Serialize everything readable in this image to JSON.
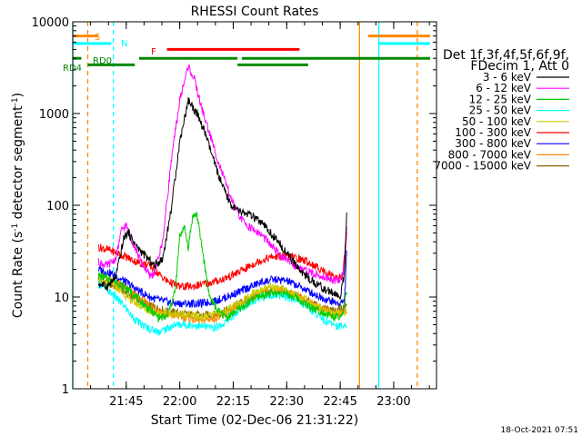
{
  "chart_data": {
    "type": "line",
    "title": "RHESSI Count Rates",
    "xlabel": "Start Time (02-Dec-06 21:31:22)",
    "ylabel_main": "Count Rate (s",
    "ylabel_sup": "-1",
    "ylabel_tail": " detector segment",
    "ylabel_sup2": "-1",
    "ylabel_close": ")",
    "timestamp": "18-Oct-2021 07:51",
    "y_scale": "log",
    "ylim": [
      1,
      10000
    ],
    "xlim_minutes": [
      21.5,
      23.2
    ],
    "x_ticks": [
      {
        "t": 21.75,
        "label": "21:45"
      },
      {
        "t": 22.0,
        "label": "22:00"
      },
      {
        "t": 22.25,
        "label": "22:15"
      },
      {
        "t": 22.5,
        "label": "22:30"
      },
      {
        "t": 22.75,
        "label": "22:45"
      },
      {
        "t": 23.0,
        "label": "23:00"
      }
    ],
    "y_ticks": [
      {
        "v": 1,
        "label": "1"
      },
      {
        "v": 10,
        "label": "10"
      },
      {
        "v": 100,
        "label": "100"
      },
      {
        "v": 1000,
        "label": "1000"
      },
      {
        "v": 10000,
        "label": "10000"
      }
    ],
    "legend": {
      "header1": "Det 1f,3f,4f,5f,6f,9f,",
      "header2": "FDecim 1, Att 0",
      "entries": [
        {
          "label": "3 - 6 keV",
          "color": "#000000"
        },
        {
          "label": "6 - 12 keV",
          "color": "#ff00ff"
        },
        {
          "label": "12 - 25 keV",
          "color": "#00cc00"
        },
        {
          "label": "25 - 50 keV",
          "color": "#00ffff"
        },
        {
          "label": "50 - 100 keV",
          "color": "#cccc00"
        },
        {
          "label": "100 - 300 keV",
          "color": "#ff0000"
        },
        {
          "label": "300 - 800 keV",
          "color": "#0000ff"
        },
        {
          "label": "800 - 7000 keV",
          "color": "#ff8800"
        },
        {
          "label": "7000 - 15000 keV",
          "color": "#886600"
        }
      ]
    },
    "flag_labels": [
      {
        "text": "S",
        "color": "#ff8800"
      },
      {
        "text": "N",
        "color": "#00ffff"
      },
      {
        "text": "F",
        "color": "#ff0000"
      },
      {
        "text": "RD0",
        "color": "#008800"
      },
      {
        "text": "RD4",
        "color": "#008800"
      }
    ],
    "flag_bars": [
      {
        "name": "S",
        "color": "#ff8800",
        "value": 7000,
        "segments": [
          [
            21.5,
            21.62
          ],
          [
            22.88,
            23.17
          ]
        ]
      },
      {
        "name": "N",
        "color": "#00ffff",
        "value": 5800,
        "segments": [
          [
            21.5,
            21.68
          ],
          [
            22.93,
            23.17
          ]
        ]
      },
      {
        "name": "F",
        "color": "#ff0000",
        "value": 5000,
        "segments": [
          [
            21.94,
            22.56
          ]
        ]
      },
      {
        "name": "RD0",
        "color": "#008800",
        "value": 4000,
        "segments": [
          [
            21.5,
            21.54
          ],
          [
            21.81,
            22.27
          ],
          [
            22.29,
            23.17
          ]
        ]
      },
      {
        "name": "RD4",
        "color": "#008800",
        "value": 3400,
        "segments": [
          [
            21.57,
            21.79
          ],
          [
            22.27,
            22.6
          ]
        ]
      }
    ],
    "vertical_markers": [
      {
        "t": 21.5,
        "color": "#00ffff",
        "dash": false
      },
      {
        "t": 21.57,
        "color": "#ff8800",
        "dash": true
      },
      {
        "t": 21.69,
        "color": "#00ffff",
        "dash": true
      },
      {
        "t": 22.84,
        "color": "#ff8800",
        "dash": false
      },
      {
        "t": 22.93,
        "color": "#00ffff",
        "dash": false
      },
      {
        "t": 23.11,
        "color": "#ff8800",
        "dash": true
      }
    ],
    "series": [
      {
        "name": "3 - 6 keV",
        "color": "#000000",
        "points": [
          [
            21.62,
            14
          ],
          [
            21.66,
            13
          ],
          [
            21.7,
            16
          ],
          [
            21.74,
            45
          ],
          [
            21.76,
            50
          ],
          [
            21.8,
            35
          ],
          [
            21.84,
            28
          ],
          [
            21.88,
            22
          ],
          [
            21.92,
            26
          ],
          [
            21.96,
            90
          ],
          [
            22.0,
            500
          ],
          [
            22.04,
            1400
          ],
          [
            22.08,
            1000
          ],
          [
            22.12,
            600
          ],
          [
            22.16,
            300
          ],
          [
            22.2,
            160
          ],
          [
            22.24,
            100
          ],
          [
            22.28,
            85
          ],
          [
            22.32,
            80
          ],
          [
            22.36,
            70
          ],
          [
            22.4,
            58
          ],
          [
            22.44,
            45
          ],
          [
            22.48,
            35
          ],
          [
            22.52,
            26
          ],
          [
            22.56,
            20
          ],
          [
            22.6,
            16
          ],
          [
            22.64,
            14
          ],
          [
            22.68,
            12
          ],
          [
            22.72,
            11
          ],
          [
            22.75,
            10
          ],
          [
            22.77,
            18
          ],
          [
            22.78,
            80
          ]
        ]
      },
      {
        "name": "6 - 12 keV",
        "color": "#ff00ff",
        "points": [
          [
            21.62,
            24
          ],
          [
            21.66,
            22
          ],
          [
            21.7,
            26
          ],
          [
            21.73,
            55
          ],
          [
            21.75,
            60
          ],
          [
            21.78,
            40
          ],
          [
            21.82,
            24
          ],
          [
            21.86,
            17
          ],
          [
            21.88,
            18
          ],
          [
            21.92,
            40
          ],
          [
            21.96,
            300
          ],
          [
            22.0,
            1400
          ],
          [
            22.04,
            3300
          ],
          [
            22.07,
            2300
          ],
          [
            22.1,
            1200
          ],
          [
            22.14,
            600
          ],
          [
            22.18,
            300
          ],
          [
            22.22,
            160
          ],
          [
            22.26,
            90
          ],
          [
            22.3,
            65
          ],
          [
            22.34,
            55
          ],
          [
            22.38,
            48
          ],
          [
            22.42,
            38
          ],
          [
            22.46,
            30
          ],
          [
            22.5,
            25
          ],
          [
            22.54,
            22
          ],
          [
            22.58,
            20
          ],
          [
            22.62,
            18
          ],
          [
            22.66,
            17
          ],
          [
            22.7,
            16
          ],
          [
            22.74,
            15
          ],
          [
            22.77,
            20
          ],
          [
            22.78,
            60
          ]
        ]
      },
      {
        "name": "12 - 25 keV",
        "color": "#00cc00",
        "points": [
          [
            21.62,
            17
          ],
          [
            21.7,
            15
          ],
          [
            21.78,
            11
          ],
          [
            21.84,
            8
          ],
          [
            21.9,
            6
          ],
          [
            21.94,
            6
          ],
          [
            21.98,
            12
          ],
          [
            22.0,
            45
          ],
          [
            22.02,
            60
          ],
          [
            22.04,
            35
          ],
          [
            22.06,
            75
          ],
          [
            22.08,
            80
          ],
          [
            22.1,
            40
          ],
          [
            22.12,
            20
          ],
          [
            22.14,
            10
          ],
          [
            22.18,
            7
          ],
          [
            22.22,
            6
          ],
          [
            22.26,
            7
          ],
          [
            22.3,
            8
          ],
          [
            22.36,
            10
          ],
          [
            22.42,
            11
          ],
          [
            22.48,
            11
          ],
          [
            22.54,
            10
          ],
          [
            22.6,
            8
          ],
          [
            22.66,
            7
          ],
          [
            22.72,
            6
          ],
          [
            22.76,
            6
          ],
          [
            22.78,
            12
          ]
        ]
      },
      {
        "name": "25 - 50 keV",
        "color": "#00ffff",
        "points": [
          [
            21.62,
            14
          ],
          [
            21.66,
            12
          ],
          [
            21.7,
            10
          ],
          [
            21.74,
            8
          ],
          [
            21.78,
            6
          ],
          [
            21.82,
            5
          ],
          [
            21.86,
            4.5
          ],
          [
            21.9,
            4.2
          ],
          [
            21.94,
            4.5
          ],
          [
            21.98,
            5
          ],
          [
            22.04,
            5
          ],
          [
            22.1,
            4.8
          ],
          [
            22.16,
            4.6
          ],
          [
            22.2,
            5
          ],
          [
            22.26,
            6.5
          ],
          [
            22.32,
            8.5
          ],
          [
            22.38,
            10
          ],
          [
            22.44,
            10.5
          ],
          [
            22.5,
            10
          ],
          [
            22.56,
            9
          ],
          [
            22.62,
            7
          ],
          [
            22.68,
            5.5
          ],
          [
            22.74,
            4.8
          ],
          [
            22.78,
            5
          ]
        ]
      },
      {
        "name": "50 - 100 keV",
        "color": "#cccc00",
        "points": [
          [
            21.62,
            16
          ],
          [
            21.7,
            13
          ],
          [
            21.78,
            9
          ],
          [
            21.86,
            7
          ],
          [
            21.94,
            6.5
          ],
          [
            22.02,
            6.5
          ],
          [
            22.1,
            6
          ],
          [
            22.18,
            6.5
          ],
          [
            22.26,
            8
          ],
          [
            22.34,
            11
          ],
          [
            22.42,
            13
          ],
          [
            22.48,
            12
          ],
          [
            22.56,
            10
          ],
          [
            22.64,
            8
          ],
          [
            22.72,
            6.5
          ],
          [
            22.78,
            7
          ]
        ]
      },
      {
        "name": "100 - 300 keV",
        "color": "#ff0000",
        "points": [
          [
            21.62,
            35
          ],
          [
            21.68,
            32
          ],
          [
            21.74,
            28
          ],
          [
            21.8,
            24
          ],
          [
            21.86,
            22
          ],
          [
            21.9,
            18
          ],
          [
            21.94,
            15
          ],
          [
            22.0,
            13
          ],
          [
            22.06,
            13
          ],
          [
            22.12,
            14
          ],
          [
            22.18,
            15
          ],
          [
            22.24,
            17
          ],
          [
            22.3,
            20
          ],
          [
            22.36,
            24
          ],
          [
            22.42,
            27
          ],
          [
            22.48,
            28
          ],
          [
            22.54,
            27
          ],
          [
            22.6,
            24
          ],
          [
            22.66,
            20
          ],
          [
            22.72,
            17
          ],
          [
            22.76,
            16
          ],
          [
            22.78,
            50
          ]
        ]
      },
      {
        "name": "300 - 800 keV",
        "color": "#0000ff",
        "points": [
          [
            21.62,
            20
          ],
          [
            21.68,
            18
          ],
          [
            21.74,
            15
          ],
          [
            21.8,
            12
          ],
          [
            21.86,
            10
          ],
          [
            21.92,
            9
          ],
          [
            21.98,
            8.5
          ],
          [
            22.04,
            8.5
          ],
          [
            22.1,
            8.5
          ],
          [
            22.16,
            9
          ],
          [
            22.22,
            10
          ],
          [
            22.3,
            12
          ],
          [
            22.38,
            14.5
          ],
          [
            22.44,
            15.5
          ],
          [
            22.5,
            15
          ],
          [
            22.56,
            13
          ],
          [
            22.62,
            11
          ],
          [
            22.68,
            9.5
          ],
          [
            22.74,
            8.5
          ],
          [
            22.77,
            9
          ],
          [
            22.78,
            30
          ]
        ]
      },
      {
        "name": "800 - 7000 keV",
        "color": "#ff8800",
        "points": [
          [
            21.62,
            17
          ],
          [
            21.7,
            15
          ],
          [
            21.78,
            11
          ],
          [
            21.86,
            8
          ],
          [
            21.94,
            6.5
          ],
          [
            22.02,
            6
          ],
          [
            22.1,
            5.5
          ],
          [
            22.18,
            6
          ],
          [
            22.26,
            7.5
          ],
          [
            22.34,
            10
          ],
          [
            22.42,
            12
          ],
          [
            22.48,
            12
          ],
          [
            22.56,
            10
          ],
          [
            22.64,
            8
          ],
          [
            22.72,
            6.5
          ],
          [
            22.78,
            7
          ]
        ]
      },
      {
        "name": "7000 - 15000 keV",
        "color": "#886600",
        "points": [
          [
            21.62,
            15
          ],
          [
            21.7,
            13
          ],
          [
            21.78,
            10
          ],
          [
            21.86,
            8
          ],
          [
            21.94,
            7
          ],
          [
            22.02,
            6.5
          ],
          [
            22.1,
            6.3
          ],
          [
            22.18,
            6.5
          ],
          [
            22.26,
            8
          ],
          [
            22.34,
            10
          ],
          [
            22.42,
            11.5
          ],
          [
            22.48,
            11.5
          ],
          [
            22.56,
            10
          ],
          [
            22.64,
            8
          ],
          [
            22.72,
            7
          ],
          [
            22.78,
            8
          ]
        ]
      }
    ]
  }
}
